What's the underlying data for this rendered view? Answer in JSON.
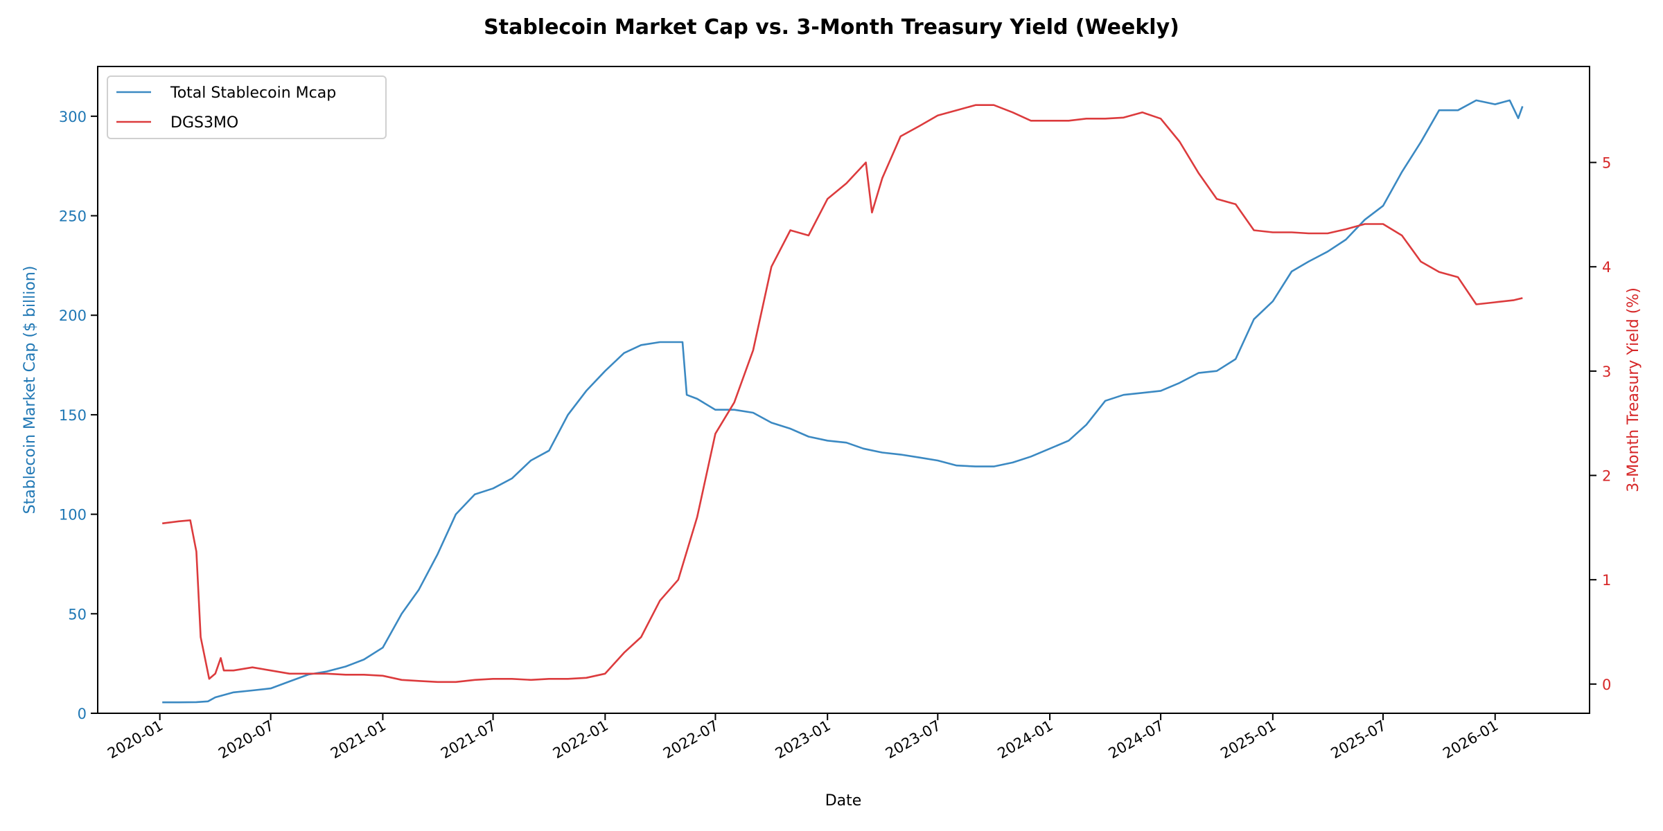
{
  "chart_data": {
    "type": "line",
    "title": "Stablecoin Market Cap vs. 3-Month Treasury Yield (Weekly)",
    "xlabel": "Date",
    "ylabel_left": "Stablecoin Market Cap ($ billion)",
    "ylabel_right": "3-Month Treasury Yield (%)",
    "xlim": [
      "2019-09-21",
      "2026-06-05"
    ],
    "ylim_left": [
      0,
      325
    ],
    "ylim_right": [
      -0.28,
      5.92
    ],
    "x_ticks": [
      "2020-01",
      "2020-07",
      "2021-01",
      "2021-07",
      "2022-01",
      "2022-07",
      "2023-01",
      "2023-07",
      "2024-01",
      "2024-07",
      "2025-01",
      "2025-07",
      "2026-01"
    ],
    "y_ticks_left": [
      0,
      50,
      100,
      150,
      200,
      250,
      300
    ],
    "y_ticks_right": [
      0,
      1,
      2,
      3,
      4,
      5
    ],
    "grid": false,
    "legend_position": "upper-left",
    "colors": {
      "left_axis": "#1f77b4",
      "right_axis": "#d62728",
      "stablecoin_line": "#3b89c2",
      "dgs3mo_line": "#dc3b3d"
    },
    "series": [
      {
        "name": "Total Stablecoin Mcap",
        "axis": "left",
        "points": [
          [
            "2020-01-05",
            5.5
          ],
          [
            "2020-02-01",
            5.5
          ],
          [
            "2020-03-01",
            5.6
          ],
          [
            "2020-03-20",
            6
          ],
          [
            "2020-04-01",
            8
          ],
          [
            "2020-05-01",
            10.5
          ],
          [
            "2020-06-01",
            11.5
          ],
          [
            "2020-07-01",
            12.5
          ],
          [
            "2020-08-01",
            16
          ],
          [
            "2020-09-01",
            19.5
          ],
          [
            "2020-10-01",
            21
          ],
          [
            "2020-11-01",
            23.5
          ],
          [
            "2020-12-01",
            27
          ],
          [
            "2021-01-01",
            33
          ],
          [
            "2021-02-01",
            50
          ],
          [
            "2021-03-01",
            62
          ],
          [
            "2021-04-01",
            80
          ],
          [
            "2021-05-01",
            100
          ],
          [
            "2021-06-01",
            110
          ],
          [
            "2021-07-01",
            113
          ],
          [
            "2021-08-01",
            118
          ],
          [
            "2021-09-01",
            127
          ],
          [
            "2021-10-01",
            132
          ],
          [
            "2021-11-01",
            150
          ],
          [
            "2021-12-01",
            162
          ],
          [
            "2022-01-01",
            172
          ],
          [
            "2022-02-01",
            181
          ],
          [
            "2022-03-01",
            185
          ],
          [
            "2022-04-01",
            186.5
          ],
          [
            "2022-05-08",
            186.5
          ],
          [
            "2022-05-15",
            160
          ],
          [
            "2022-06-01",
            158
          ],
          [
            "2022-07-01",
            152.5
          ],
          [
            "2022-08-01",
            152.5
          ],
          [
            "2022-09-01",
            151
          ],
          [
            "2022-10-01",
            146
          ],
          [
            "2022-11-01",
            143
          ],
          [
            "2022-12-01",
            139
          ],
          [
            "2023-01-01",
            137
          ],
          [
            "2023-02-01",
            136
          ],
          [
            "2023-03-01",
            133
          ],
          [
            "2023-04-01",
            131
          ],
          [
            "2023-05-01",
            130
          ],
          [
            "2023-06-01",
            128.5
          ],
          [
            "2023-07-01",
            127
          ],
          [
            "2023-08-01",
            124.5
          ],
          [
            "2023-09-01",
            124
          ],
          [
            "2023-10-01",
            124
          ],
          [
            "2023-11-01",
            126
          ],
          [
            "2023-12-01",
            129
          ],
          [
            "2024-01-01",
            133
          ],
          [
            "2024-02-01",
            137
          ],
          [
            "2024-03-01",
            145
          ],
          [
            "2024-04-01",
            157
          ],
          [
            "2024-05-01",
            160
          ],
          [
            "2024-06-01",
            161
          ],
          [
            "2024-07-01",
            162
          ],
          [
            "2024-08-01",
            166
          ],
          [
            "2024-09-01",
            171
          ],
          [
            "2024-10-01",
            172
          ],
          [
            "2024-11-01",
            178
          ],
          [
            "2024-12-01",
            198
          ],
          [
            "2025-01-01",
            207
          ],
          [
            "2025-02-01",
            222
          ],
          [
            "2025-03-01",
            227
          ],
          [
            "2025-04-01",
            232
          ],
          [
            "2025-05-01",
            238
          ],
          [
            "2025-06-01",
            248
          ],
          [
            "2025-07-01",
            255
          ],
          [
            "2025-08-01",
            272
          ],
          [
            "2025-09-01",
            287
          ],
          [
            "2025-10-01",
            303
          ],
          [
            "2025-11-01",
            303
          ],
          [
            "2025-12-01",
            308
          ],
          [
            "2026-01-01",
            306
          ],
          [
            "2026-01-25",
            308
          ],
          [
            "2026-02-08",
            299
          ],
          [
            "2026-02-15",
            305
          ]
        ]
      },
      {
        "name": "DGS3MO",
        "axis": "right",
        "points": [
          [
            "2020-01-05",
            1.54
          ],
          [
            "2020-02-01",
            1.56
          ],
          [
            "2020-02-20",
            1.57
          ],
          [
            "2020-03-01",
            1.27
          ],
          [
            "2020-03-08",
            0.45
          ],
          [
            "2020-03-22",
            0.05
          ],
          [
            "2020-04-01",
            0.1
          ],
          [
            "2020-04-10",
            0.25
          ],
          [
            "2020-04-15",
            0.13
          ],
          [
            "2020-05-01",
            0.13
          ],
          [
            "2020-06-01",
            0.16
          ],
          [
            "2020-07-01",
            0.13
          ],
          [
            "2020-08-01",
            0.1
          ],
          [
            "2020-09-01",
            0.1
          ],
          [
            "2020-10-01",
            0.1
          ],
          [
            "2020-11-01",
            0.09
          ],
          [
            "2020-12-01",
            0.09
          ],
          [
            "2021-01-01",
            0.08
          ],
          [
            "2021-02-01",
            0.04
          ],
          [
            "2021-03-01",
            0.03
          ],
          [
            "2021-04-01",
            0.02
          ],
          [
            "2021-05-01",
            0.02
          ],
          [
            "2021-06-01",
            0.04
          ],
          [
            "2021-07-01",
            0.05
          ],
          [
            "2021-08-01",
            0.05
          ],
          [
            "2021-09-01",
            0.04
          ],
          [
            "2021-10-01",
            0.05
          ],
          [
            "2021-11-01",
            0.05
          ],
          [
            "2021-12-01",
            0.06
          ],
          [
            "2022-01-01",
            0.1
          ],
          [
            "2022-02-01",
            0.3
          ],
          [
            "2022-03-01",
            0.45
          ],
          [
            "2022-04-01",
            0.8
          ],
          [
            "2022-05-01",
            1.0
          ],
          [
            "2022-06-01",
            1.6
          ],
          [
            "2022-07-01",
            2.4
          ],
          [
            "2022-08-01",
            2.7
          ],
          [
            "2022-09-01",
            3.2
          ],
          [
            "2022-10-01",
            4.0
          ],
          [
            "2022-11-01",
            4.35
          ],
          [
            "2022-12-01",
            4.3
          ],
          [
            "2023-01-01",
            4.65
          ],
          [
            "2023-02-01",
            4.8
          ],
          [
            "2023-03-05",
            5.0
          ],
          [
            "2023-03-15",
            4.52
          ],
          [
            "2023-04-01",
            4.85
          ],
          [
            "2023-05-01",
            5.25
          ],
          [
            "2023-06-01",
            5.35
          ],
          [
            "2023-07-01",
            5.45
          ],
          [
            "2023-08-01",
            5.5
          ],
          [
            "2023-09-01",
            5.55
          ],
          [
            "2023-10-01",
            5.55
          ],
          [
            "2023-11-01",
            5.48
          ],
          [
            "2023-12-01",
            5.4
          ],
          [
            "2024-01-01",
            5.4
          ],
          [
            "2024-02-01",
            5.4
          ],
          [
            "2024-03-01",
            5.42
          ],
          [
            "2024-04-01",
            5.42
          ],
          [
            "2024-05-01",
            5.43
          ],
          [
            "2024-06-01",
            5.48
          ],
          [
            "2024-07-01",
            5.42
          ],
          [
            "2024-08-01",
            5.2
          ],
          [
            "2024-09-01",
            4.9
          ],
          [
            "2024-10-01",
            4.65
          ],
          [
            "2024-11-01",
            4.6
          ],
          [
            "2024-12-01",
            4.35
          ],
          [
            "2025-01-01",
            4.33
          ],
          [
            "2025-02-01",
            4.33
          ],
          [
            "2025-03-01",
            4.32
          ],
          [
            "2025-04-01",
            4.32
          ],
          [
            "2025-05-01",
            4.36
          ],
          [
            "2025-06-01",
            4.41
          ],
          [
            "2025-07-01",
            4.41
          ],
          [
            "2025-08-01",
            4.3
          ],
          [
            "2025-09-01",
            4.05
          ],
          [
            "2025-10-01",
            3.95
          ],
          [
            "2025-11-01",
            3.9
          ],
          [
            "2025-12-01",
            3.64
          ],
          [
            "2026-01-01",
            3.66
          ],
          [
            "2026-02-01",
            3.68
          ],
          [
            "2026-02-15",
            3.7
          ]
        ]
      }
    ]
  }
}
